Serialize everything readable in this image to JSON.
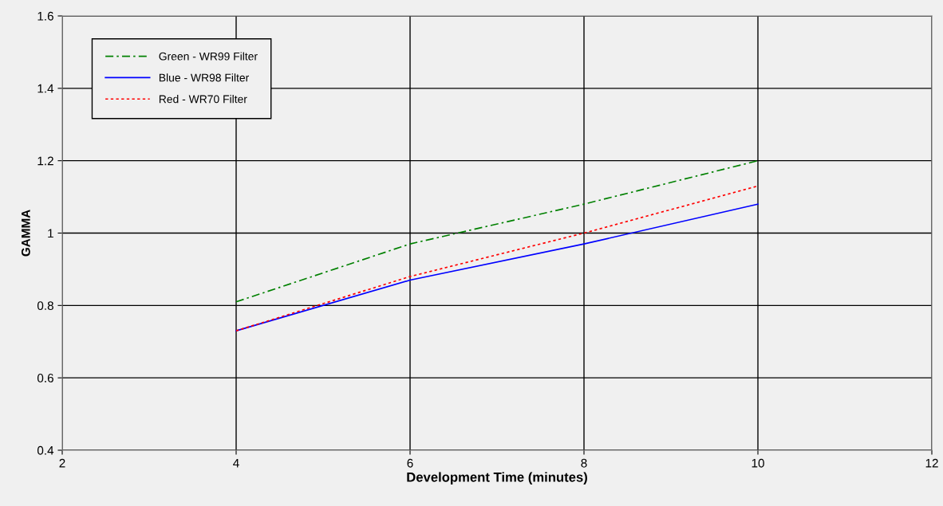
{
  "chart_data": {
    "type": "line",
    "xlabel": "Development Time (minutes)",
    "ylabel": "GAMMA",
    "x": [
      4,
      6,
      8,
      10
    ],
    "series": [
      {
        "name": "Green - WR99 Filter",
        "color": "#008000",
        "line_style": "dashdot",
        "values": [
          0.81,
          0.97,
          1.08,
          1.2
        ]
      },
      {
        "name": "Blue - WR98 Filter",
        "color": "#0000ff",
        "line_style": "solid",
        "values": [
          0.73,
          0.87,
          0.97,
          1.08
        ]
      },
      {
        "name": "Red - WR70 Filter",
        "color": "#ff0000",
        "line_style": "dotted",
        "values": [
          0.73,
          0.88,
          1.0,
          1.13
        ]
      }
    ],
    "xlim": [
      2,
      12
    ],
    "xticks": [
      2,
      4,
      6,
      8,
      10,
      12
    ],
    "ylim": [
      0.4,
      1.6
    ],
    "yticks": [
      {
        "value": 0.4,
        "label": "0.4"
      },
      {
        "value": 0.6,
        "label": "0.6"
      },
      {
        "value": 0.8,
        "label": "0.8"
      },
      {
        "value": 1.0,
        "label": "1"
      },
      {
        "value": 1.2,
        "label": "1.2"
      },
      {
        "value": 1.4,
        "label": "1.4"
      },
      {
        "value": 1.6,
        "label": "1.6"
      }
    ],
    "grid": true,
    "legend": "top left",
    "marker": "none"
  }
}
